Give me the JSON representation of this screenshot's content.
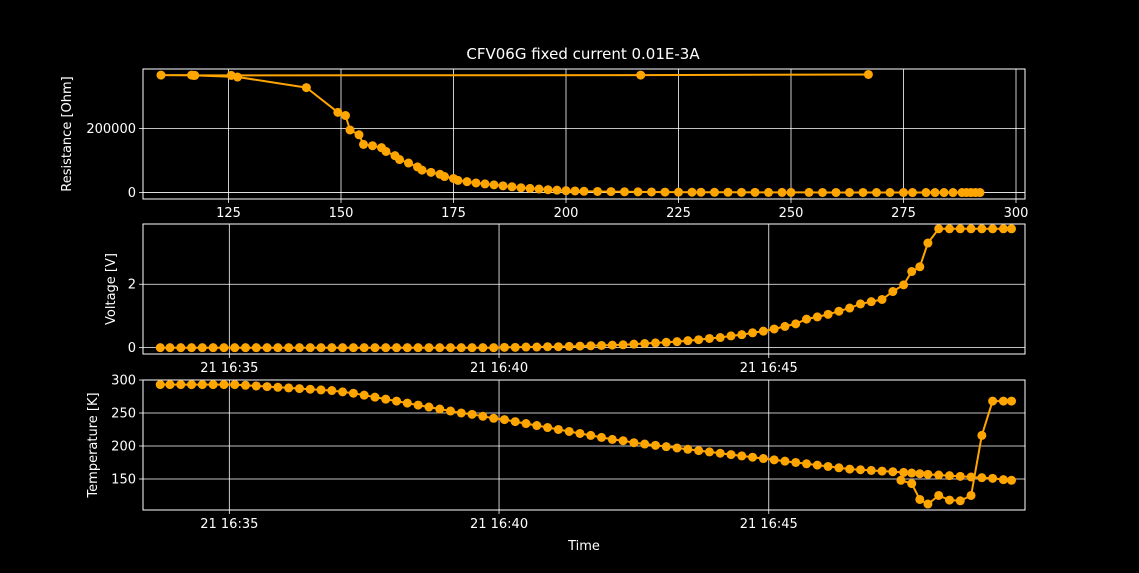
{
  "figure": {
    "title": "CFV06G fixed current 0.01E-3A",
    "background": "#000000",
    "foreground": "#ffffff",
    "series_color": "#ffa500"
  },
  "chart_data": [
    {
      "type": "line",
      "marker": "circle",
      "title": "CFV06G fixed current 0.01E-3A",
      "xlabel": "",
      "ylabel": "Resistance [Ohm]",
      "xlim": [
        106,
        302
      ],
      "ylim": [
        -20000,
        385000
      ],
      "xticks": [
        125,
        150,
        175,
        200,
        225,
        250,
        275,
        300
      ],
      "xtick_labels": [
        "125",
        "150",
        "175",
        "200",
        "225",
        "250",
        "275",
        "300"
      ],
      "yticks": [
        0,
        200000
      ],
      "ytick_labels": [
        "0",
        "200000"
      ],
      "grid": true,
      "series": [
        {
          "x": [
            267.2,
            216.6,
            125.6,
            117.2,
            116.8,
            110,
            117.5,
            127,
            142.3,
            149.3,
            151,
            152,
            154,
            155,
            157,
            159,
            160,
            162,
            163,
            165,
            167,
            168,
            170,
            172,
            173,
            175,
            176,
            178,
            180,
            182,
            184,
            186,
            188,
            190,
            192,
            194,
            196,
            198,
            200,
            202,
            204,
            207,
            210,
            213,
            216,
            219,
            222,
            225,
            228,
            230,
            233,
            236,
            239,
            242,
            245,
            248,
            250,
            254,
            257,
            260,
            263,
            266,
            269,
            272,
            275,
            277,
            280,
            282,
            284,
            286,
            288,
            289,
            290,
            291,
            292
          ],
          "y": [
            368000,
            366000,
            365000,
            365000,
            366000,
            366000,
            365000,
            360000,
            327000,
            250000,
            240000,
            195000,
            180000,
            150000,
            146000,
            140000,
            128000,
            115000,
            103000,
            92000,
            80000,
            70000,
            63000,
            57000,
            50000,
            44000,
            38000,
            34000,
            30000,
            27000,
            24000,
            21000,
            18000,
            15000,
            13000,
            11000,
            9000,
            7500,
            6000,
            5000,
            4000,
            3500,
            3000,
            2500,
            2200,
            1900,
            1600,
            1400,
            1200,
            1100,
            1000,
            900,
            800,
            700,
            600,
            550,
            500,
            450,
            400,
            350,
            300,
            280,
            260,
            250,
            240,
            230,
            220,
            210,
            200,
            190,
            180,
            170,
            160,
            150,
            140
          ]
        }
      ]
    },
    {
      "type": "line",
      "marker": "circle",
      "xlabel": "",
      "ylabel": "Voltage [V]",
      "x_unit": "minutes after 21 16:30",
      "xlim": [
        3.4,
        19.75
      ],
      "ylim": [
        -0.2,
        3.9
      ],
      "xticks": [
        5,
        10,
        15
      ],
      "xtick_labels": [
        "21 16:35",
        "21 16:40",
        "21 16:45"
      ],
      "yticks": [
        0,
        2
      ],
      "ytick_labels": [
        "0",
        "2"
      ],
      "grid": true,
      "series": [
        {
          "x": [
            3.72,
            3.9,
            4.1,
            4.3,
            4.5,
            4.7,
            4.9,
            5.1,
            5.3,
            5.5,
            5.7,
            5.9,
            6.1,
            6.3,
            6.5,
            6.7,
            6.9,
            7.1,
            7.3,
            7.5,
            7.7,
            7.9,
            8.1,
            8.3,
            8.5,
            8.7,
            8.9,
            9.1,
            9.3,
            9.5,
            9.7,
            9.9,
            10.1,
            10.3,
            10.5,
            10.7,
            10.9,
            11.1,
            11.3,
            11.5,
            11.7,
            11.9,
            12.1,
            12.3,
            12.5,
            12.7,
            12.9,
            13.1,
            13.3,
            13.5,
            13.7,
            13.9,
            14.1,
            14.3,
            14.5,
            14.7,
            14.9,
            15.1,
            15.3,
            15.5,
            15.7,
            15.9,
            16.1,
            16.3,
            16.5,
            16.7,
            16.9,
            17.1,
            17.3,
            17.5,
            17.65,
            17.8,
            17.95,
            18.15,
            18.35,
            18.55,
            18.75,
            18.95,
            19.15,
            19.35,
            19.5
          ],
          "y": [
            0.0,
            0.0,
            0.0,
            0.0,
            0.0,
            0.0,
            0.0,
            0.0,
            0.0,
            0.0,
            0.0,
            0.0,
            0.0,
            0.0,
            0.0,
            0.0,
            0.0,
            0.0,
            0.0,
            0.0,
            0.0,
            0.0,
            0.0,
            0.0,
            0.0,
            0.0,
            0.0,
            0.0,
            0.0,
            0.0,
            0.0,
            0.0,
            0.01,
            0.01,
            0.02,
            0.02,
            0.03,
            0.03,
            0.04,
            0.05,
            0.06,
            0.07,
            0.08,
            0.09,
            0.11,
            0.13,
            0.15,
            0.17,
            0.19,
            0.22,
            0.25,
            0.29,
            0.32,
            0.37,
            0.41,
            0.47,
            0.52,
            0.59,
            0.67,
            0.75,
            0.9,
            0.97,
            1.05,
            1.15,
            1.25,
            1.38,
            1.45,
            1.52,
            1.77,
            1.98,
            2.4,
            2.55,
            3.3,
            3.75,
            3.75,
            3.75,
            3.75,
            3.75,
            3.75,
            3.75,
            3.75
          ]
        }
      ]
    },
    {
      "type": "line",
      "marker": "circle",
      "xlabel": "Time",
      "ylabel": "Temperature [K]",
      "x_unit": "minutes after 21 16:30",
      "xlim": [
        3.4,
        19.75
      ],
      "ylim": [
        103,
        300
      ],
      "xticks": [
        5,
        10,
        15
      ],
      "xtick_labels": [
        "21 16:35",
        "21 16:40",
        "21 16:45"
      ],
      "yticks": [
        150,
        200,
        250,
        300
      ],
      "ytick_labels": [
        "150",
        "200",
        "250",
        "300"
      ],
      "grid": true,
      "series": [
        {
          "x": [
            3.72,
            3.9,
            4.1,
            4.3,
            4.5,
            4.7,
            4.9,
            5.1,
            5.3,
            5.5,
            5.7,
            5.9,
            6.1,
            6.3,
            6.5,
            6.7,
            6.9,
            7.1,
            7.3,
            7.5,
            7.7,
            7.9,
            8.1,
            8.3,
            8.5,
            8.7,
            8.9,
            9.1,
            9.3,
            9.5,
            9.7,
            9.9,
            10.1,
            10.3,
            10.5,
            10.7,
            10.9,
            11.1,
            11.3,
            11.5,
            11.7,
            11.9,
            12.1,
            12.3,
            12.5,
            12.7,
            12.9,
            13.1,
            13.3,
            13.5,
            13.7,
            13.9,
            14.1,
            14.3,
            14.5,
            14.7,
            14.9,
            15.1,
            15.3,
            15.5,
            15.7,
            15.9,
            16.1,
            16.3,
            16.5,
            16.7,
            16.9,
            17.1,
            17.3,
            17.5,
            17.65,
            17.8,
            17.95,
            18.15,
            18.35,
            18.55,
            18.75,
            18.95,
            19.15,
            19.35,
            19.5
          ],
          "y": [
            293,
            293,
            293,
            293,
            293,
            293,
            293,
            293,
            292,
            291,
            290,
            289,
            288,
            287,
            286,
            285,
            284,
            282,
            280,
            277,
            274,
            271,
            268,
            265,
            262,
            259,
            256,
            253,
            250,
            248,
            245,
            242,
            240,
            237,
            234,
            231,
            228,
            225,
            222,
            219,
            216,
            213,
            210,
            208,
            205,
            203,
            201,
            199,
            197,
            195,
            193,
            191,
            189,
            187,
            185,
            183,
            181,
            179,
            177,
            175,
            173,
            171,
            169,
            167,
            165,
            164,
            163,
            162,
            161,
            160,
            159,
            158,
            157,
            156,
            155,
            154,
            153,
            152,
            151,
            149,
            148
          ]
        },
        {
          "x": [
            17.45,
            17.65,
            17.8,
            17.95,
            18.15,
            18.35,
            18.55,
            18.75,
            18.95,
            19.15,
            19.35,
            19.5
          ],
          "y": [
            148,
            143,
            119,
            112,
            125,
            118,
            117,
            125,
            216,
            268,
            268,
            268
          ]
        }
      ]
    }
  ]
}
